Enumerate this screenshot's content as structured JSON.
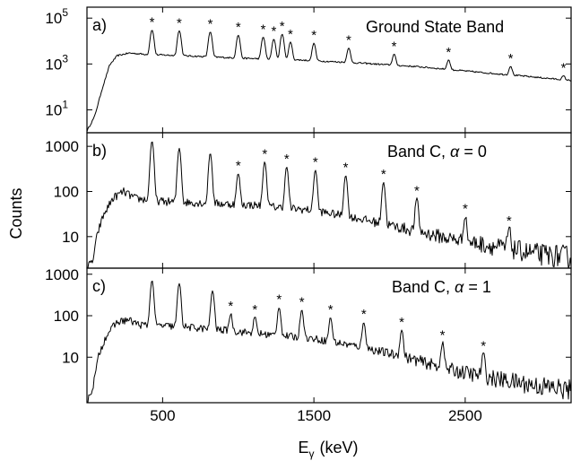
{
  "chart_data": {
    "type": "line",
    "ylabel": "Counts",
    "xlabel_main": "E",
    "xlabel_sub": "γ",
    "xlabel_unit": "(keV)",
    "xlim": [
      0,
      3200
    ],
    "xticks": [
      500,
      1500,
      2500
    ],
    "xtick_labels": [
      "500",
      "1500",
      "2500"
    ],
    "grid": false,
    "panels": [
      {
        "id": "a",
        "panel_label": "a)",
        "title": "Ground State Band",
        "title_italic": "",
        "title_suffix": "",
        "yscale": "log",
        "ylim": [
          1,
          300000
        ],
        "yticks": [
          {
            "value": 10,
            "base": "10",
            "exp": "1"
          },
          {
            "value": 1000,
            "base": "10",
            "exp": "3"
          },
          {
            "value": 100000,
            "base": "10",
            "exp": "5"
          }
        ],
        "continuum": [
          [
            0,
            1.2
          ],
          [
            50,
            5
          ],
          [
            100,
            80
          ],
          [
            150,
            900
          ],
          [
            200,
            2300
          ],
          [
            280,
            3000
          ],
          [
            400,
            2600
          ],
          [
            700,
            2200
          ],
          [
            1000,
            1800
          ],
          [
            1400,
            1500
          ],
          [
            1800,
            1100
          ],
          [
            2200,
            750
          ],
          [
            2600,
            430
          ],
          [
            2900,
            290
          ],
          [
            3200,
            190
          ]
        ],
        "peaks": [
          {
            "x": 430,
            "y": 30000,
            "star": true
          },
          {
            "x": 610,
            "y": 28000,
            "star": true
          },
          {
            "x": 815,
            "y": 25000,
            "star": true
          },
          {
            "x": 1000,
            "y": 18000,
            "star": true
          },
          {
            "x": 1165,
            "y": 15000,
            "star": true
          },
          {
            "x": 1235,
            "y": 12000,
            "star": true
          },
          {
            "x": 1290,
            "y": 20000,
            "star": true
          },
          {
            "x": 1345,
            "y": 9000,
            "star": true
          },
          {
            "x": 1500,
            "y": 8000,
            "star": true
          },
          {
            "x": 1730,
            "y": 5000,
            "star": true
          },
          {
            "x": 2030,
            "y": 2700,
            "star": true
          },
          {
            "x": 2390,
            "y": 1500,
            "star": true
          },
          {
            "x": 2800,
            "y": 800,
            "star": true
          },
          {
            "x": 3150,
            "y": 300,
            "star": true
          }
        ]
      },
      {
        "id": "b",
        "panel_label": "b)",
        "title": "Band C, ",
        "title_italic": "α",
        "title_suffix": " = 0",
        "yscale": "log",
        "ylim": [
          2,
          2000
        ],
        "yticks": [
          {
            "value": 10,
            "label": "10"
          },
          {
            "value": 100,
            "label": "100"
          },
          {
            "value": 1000,
            "label": "1000"
          }
        ],
        "continuum": [
          [
            0,
            2
          ],
          [
            40,
            3
          ],
          [
            70,
            12
          ],
          [
            110,
            30
          ],
          [
            170,
            70
          ],
          [
            240,
            100
          ],
          [
            320,
            70
          ],
          [
            500,
            60
          ],
          [
            800,
            55
          ],
          [
            1100,
            50
          ],
          [
            1500,
            38
          ],
          [
            1800,
            25
          ],
          [
            2100,
            15
          ],
          [
            2400,
            9
          ],
          [
            2700,
            6
          ],
          [
            3000,
            4
          ],
          [
            3200,
            3.5
          ]
        ],
        "peaks": [
          {
            "x": 430,
            "y": 1300,
            "star": false
          },
          {
            "x": 610,
            "y": 900,
            "star": false
          },
          {
            "x": 815,
            "y": 700,
            "star": false
          },
          {
            "x": 1000,
            "y": 250,
            "star": true
          },
          {
            "x": 1175,
            "y": 450,
            "star": true
          },
          {
            "x": 1320,
            "y": 350,
            "star": true
          },
          {
            "x": 1510,
            "y": 300,
            "star": true
          },
          {
            "x": 1710,
            "y": 230,
            "star": true
          },
          {
            "x": 1960,
            "y": 160,
            "star": true
          },
          {
            "x": 2180,
            "y": 70,
            "star": true
          },
          {
            "x": 2500,
            "y": 28,
            "star": true
          },
          {
            "x": 2790,
            "y": 15,
            "star": true
          }
        ]
      },
      {
        "id": "c",
        "panel_label": "c)",
        "title": "Band C, ",
        "title_italic": "α",
        "title_suffix": " = 1",
        "yscale": "log",
        "ylim": [
          0.8,
          1400
        ],
        "yticks": [
          {
            "value": 10,
            "label": "10"
          },
          {
            "value": 100,
            "label": "100"
          },
          {
            "value": 1000,
            "label": "1000"
          }
        ],
        "continuum": [
          [
            0,
            0.8
          ],
          [
            40,
            2
          ],
          [
            80,
            12
          ],
          [
            130,
            35
          ],
          [
            200,
            70
          ],
          [
            270,
            80
          ],
          [
            350,
            60
          ],
          [
            600,
            55
          ],
          [
            900,
            45
          ],
          [
            1200,
            35
          ],
          [
            1500,
            28
          ],
          [
            1800,
            18
          ],
          [
            2100,
            10
          ],
          [
            2400,
            5
          ],
          [
            2700,
            3
          ],
          [
            3000,
            2
          ],
          [
            3200,
            1.6
          ]
        ],
        "peaks": [
          {
            "x": 430,
            "y": 700,
            "star": false
          },
          {
            "x": 610,
            "y": 600,
            "star": false
          },
          {
            "x": 830,
            "y": 400,
            "star": false
          },
          {
            "x": 950,
            "y": 110,
            "star": true
          },
          {
            "x": 1110,
            "y": 90,
            "star": true
          },
          {
            "x": 1270,
            "y": 160,
            "star": true
          },
          {
            "x": 1420,
            "y": 140,
            "star": true
          },
          {
            "x": 1610,
            "y": 90,
            "star": true
          },
          {
            "x": 1830,
            "y": 70,
            "star": true
          },
          {
            "x": 2080,
            "y": 45,
            "star": true
          },
          {
            "x": 2350,
            "y": 22,
            "star": true
          },
          {
            "x": 2620,
            "y": 12,
            "star": true
          }
        ]
      }
    ]
  }
}
